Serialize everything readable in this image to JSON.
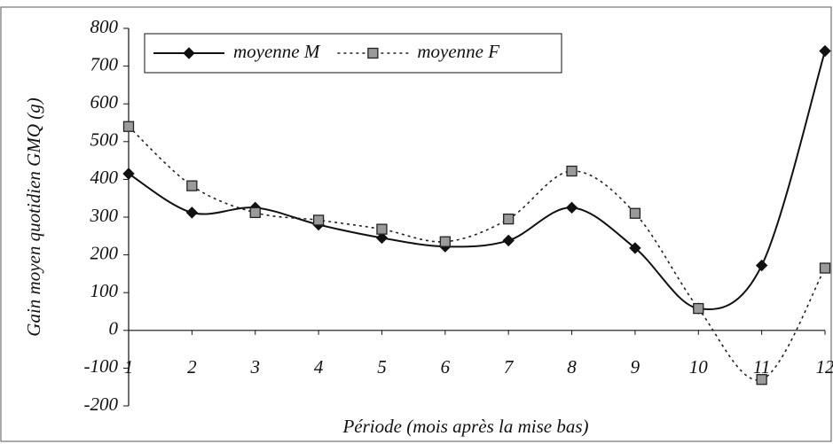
{
  "chart_data": {
    "type": "line",
    "x_label": "Période (mois après la mise bas)",
    "y_label": "Gain moyen quotidien GMQ (g)",
    "categories": [
      "1",
      "2",
      "3",
      "4",
      "5",
      "6",
      "7",
      "8",
      "9",
      "10",
      "11",
      "12"
    ],
    "series": [
      {
        "name": "moyenne M",
        "color": "#111111",
        "dashed": false,
        "marker": "diamond",
        "values": [
          415,
          312,
          325,
          280,
          245,
          222,
          238,
          325,
          218,
          58,
          172,
          740
        ]
      },
      {
        "name": "moyenne F",
        "color": "#222222",
        "dashed": true,
        "marker": "square",
        "values": [
          540,
          383,
          312,
          292,
          268,
          235,
          295,
          422,
          310,
          58,
          -130,
          165
        ]
      }
    ],
    "ylim": [
      -200,
      800
    ],
    "yticks": [
      -200,
      -100,
      0,
      100,
      200,
      300,
      400,
      500,
      600,
      700,
      800
    ],
    "smooth": true,
    "zero_line": true,
    "grid": false,
    "legend": "top-left"
  }
}
